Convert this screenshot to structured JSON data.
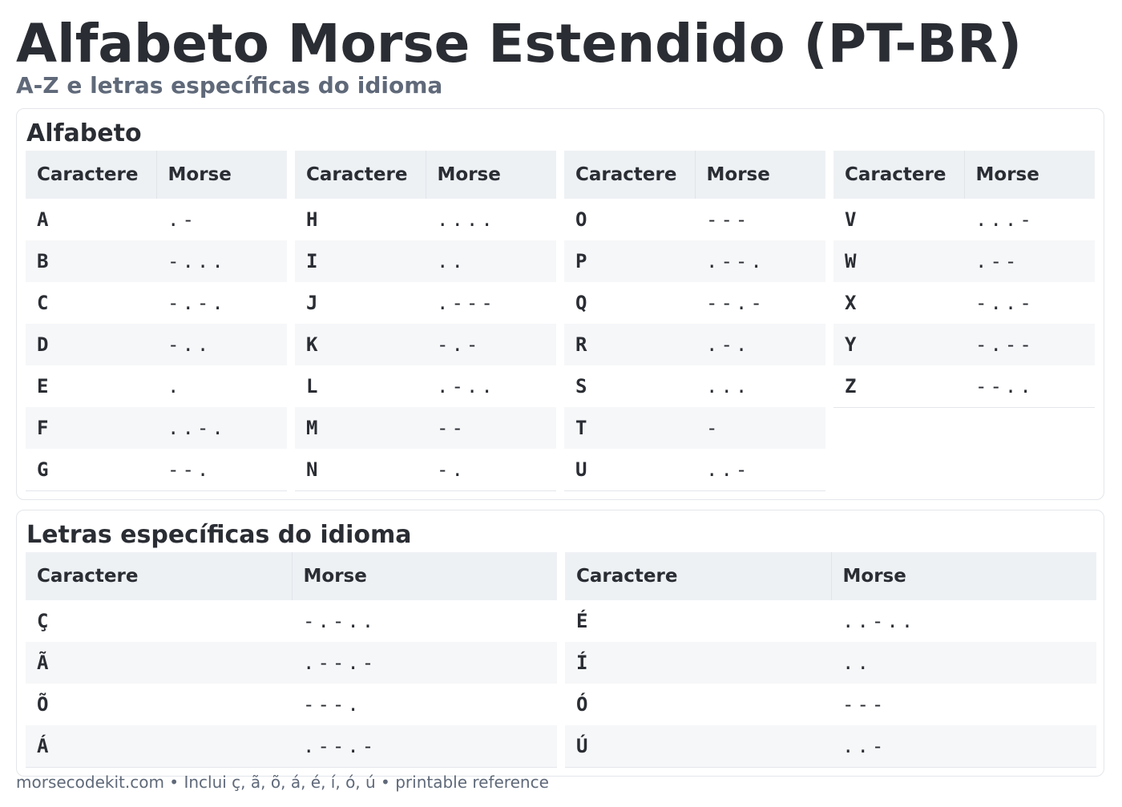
{
  "title": "Alfabeto Morse Estendido (PT-BR)",
  "subtitle": "A-Z e letras específicas do idioma",
  "table_headers": {
    "char": "Caractere",
    "morse": "Morse"
  },
  "alphabet_section": {
    "heading": "Alfabeto",
    "tables": [
      [
        {
          "char": "A",
          "morse": ".-"
        },
        {
          "char": "B",
          "morse": "-..."
        },
        {
          "char": "C",
          "morse": "-.-."
        },
        {
          "char": "D",
          "morse": "-.."
        },
        {
          "char": "E",
          "morse": "."
        },
        {
          "char": "F",
          "morse": "..-."
        },
        {
          "char": "G",
          "morse": "--."
        }
      ],
      [
        {
          "char": "H",
          "morse": "...."
        },
        {
          "char": "I",
          "morse": ".."
        },
        {
          "char": "J",
          "morse": ".---"
        },
        {
          "char": "K",
          "morse": "-.-"
        },
        {
          "char": "L",
          "morse": ".-.."
        },
        {
          "char": "M",
          "morse": "--"
        },
        {
          "char": "N",
          "morse": "-."
        }
      ],
      [
        {
          "char": "O",
          "morse": "---"
        },
        {
          "char": "P",
          "morse": ".--."
        },
        {
          "char": "Q",
          "morse": "--.-"
        },
        {
          "char": "R",
          "morse": ".-."
        },
        {
          "char": "S",
          "morse": "..."
        },
        {
          "char": "T",
          "morse": "-"
        },
        {
          "char": "U",
          "morse": "..-"
        }
      ],
      [
        {
          "char": "V",
          "morse": "...-"
        },
        {
          "char": "W",
          "morse": ".--"
        },
        {
          "char": "X",
          "morse": "-..-"
        },
        {
          "char": "Y",
          "morse": "-.--"
        },
        {
          "char": "Z",
          "morse": "--.."
        }
      ]
    ]
  },
  "extra_section": {
    "heading": "Letras específicas do idioma",
    "tables": [
      [
        {
          "char": "Ç",
          "morse": "-.-.."
        },
        {
          "char": "Ã",
          "morse": ".--.-"
        },
        {
          "char": "Õ",
          "morse": "---."
        },
        {
          "char": "Á",
          "morse": ".--.-"
        }
      ],
      [
        {
          "char": "É",
          "morse": "..-.."
        },
        {
          "char": "Í",
          "morse": ".."
        },
        {
          "char": "Ó",
          "morse": "---"
        },
        {
          "char": "Ú",
          "morse": "..-"
        }
      ]
    ]
  },
  "footer": "morsecodekit.com • Inclui ç, ã, õ, á, é, í, ó, ú • printable reference"
}
